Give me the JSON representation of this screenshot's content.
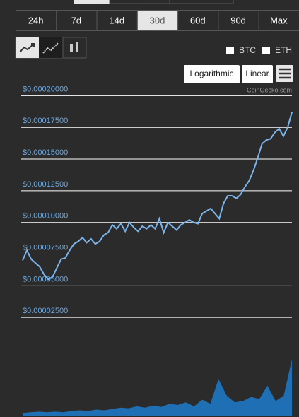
{
  "toolbar": {
    "ranges": [
      "24h",
      "7d",
      "14d",
      "30d",
      "60d",
      "90d",
      "Max"
    ],
    "selected_range": "30d",
    "currencies": [
      "BTC",
      "ETH"
    ],
    "scales": [
      "Logarithmic",
      "Linear"
    ],
    "credit": "CoinGecko.com"
  },
  "chart_data": {
    "type": "line",
    "series": [
      {
        "color": "#7cb5ec",
        "values": [
          7e-05,
          7.8e-05,
          7.1e-05,
          6.8e-05,
          6.5e-05,
          5.9e-05,
          5.5e-05,
          5.7e-05,
          6.4e-05,
          7.1e-05,
          7.2e-05,
          7.8e-05,
          8.3e-05,
          8.5e-05,
          8.8e-05,
          8.4e-05,
          8.7e-05,
          8.3e-05,
          8.5e-05,
          9e-05,
          9.2e-05,
          9.8e-05,
          9.5e-05,
          9.9e-05,
          9.3e-05,
          0.0001,
          9.6e-05,
          9.3e-05,
          9.7e-05,
          9.5e-05,
          9.8e-05,
          9.5e-05,
          0.000103,
          9.2e-05,
          0.0001,
          9.7e-05,
          9.4e-05,
          9.8e-05,
          0.0001,
          0.000102,
          0.0001,
          9.9e-05,
          0.000107,
          0.000109,
          0.000111,
          0.000107,
          0.000103,
          0.000115,
          0.000121,
          0.000121,
          0.000119,
          0.000122,
          0.000128,
          0.000133,
          0.000141,
          0.000151,
          0.000162,
          0.000165,
          0.000166,
          0.000171,
          0.000174,
          0.000168,
          0.000175,
          0.000187
        ]
      },
      {
        "color": "#1f6fb5",
        "axis": "y2",
        "values": [
          4,
          5,
          6,
          5,
          6,
          5,
          7,
          8,
          7,
          9,
          8,
          10,
          12,
          11,
          14,
          12,
          15,
          13,
          18,
          16,
          20,
          14,
          24,
          18,
          55,
          30,
          20,
          22,
          28,
          25,
          45,
          22,
          30,
          85
        ]
      }
    ],
    "ylim": [
      0,
      0.000203
    ],
    "yticks": [
      {
        "value": 2.5e-05,
        "label": "$0.00002500"
      },
      {
        "value": 5e-05,
        "label": "$0.00005000"
      },
      {
        "value": 7.5e-05,
        "label": "$0.00007500"
      },
      {
        "value": 0.0001,
        "label": "$0.00010000"
      },
      {
        "value": 0.000125,
        "label": "$0.00012500"
      },
      {
        "value": 0.00015,
        "label": "$0.00015000"
      },
      {
        "value": 0.000175,
        "label": "$0.00017500"
      },
      {
        "value": 0.0002,
        "label": "$0.00020000"
      }
    ],
    "y2lim": [
      0,
      100
    ],
    "grid": true
  }
}
